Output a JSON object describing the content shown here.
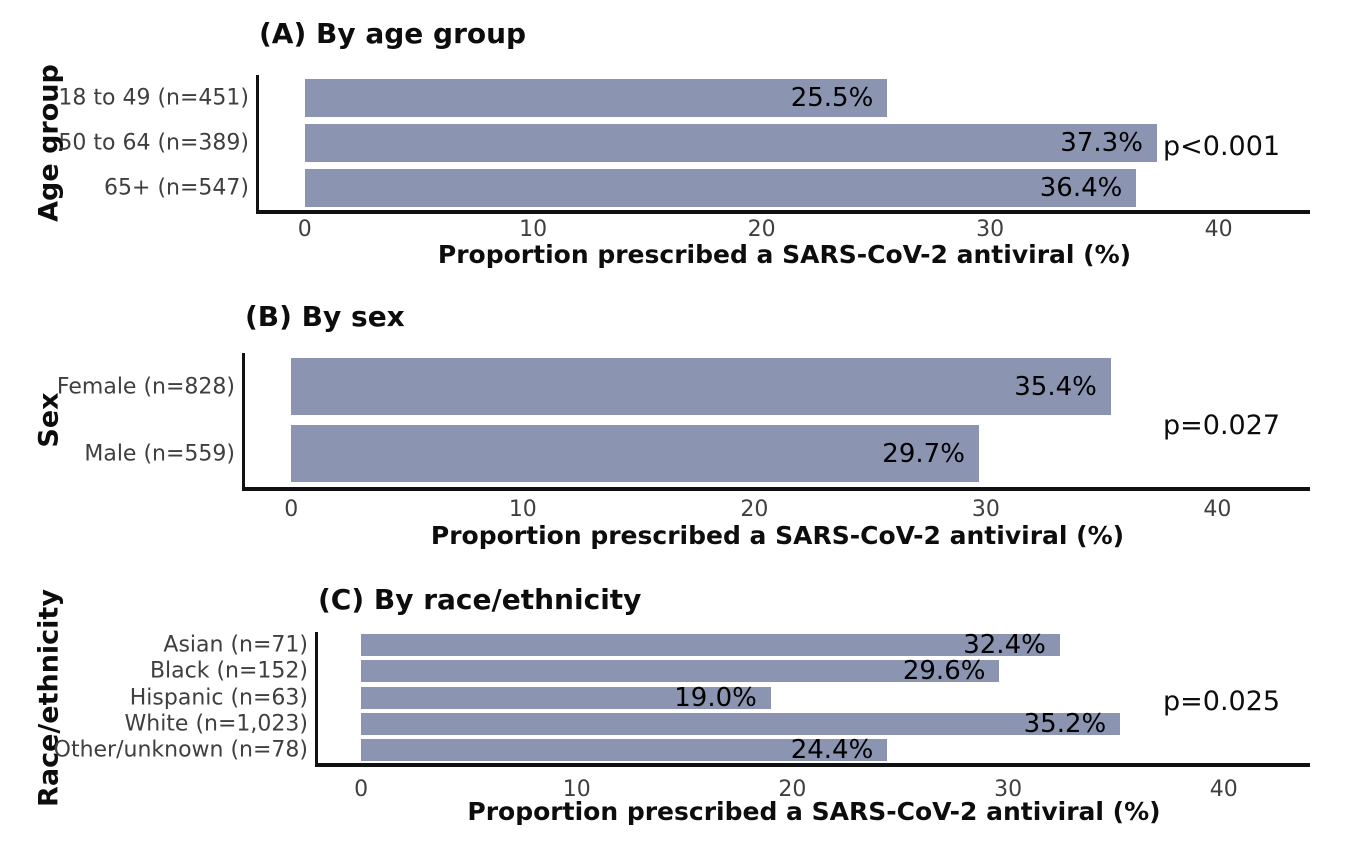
{
  "figure": {
    "bar_color": "#8B95B1",
    "axis_color": "#111111",
    "title_color": "#0d0d0d",
    "muted_text_color": "#3f3f3f"
  },
  "chart_data": [
    {
      "type": "bar",
      "orientation": "horizontal",
      "title": "(A) By age group",
      "ylabel": "Age group",
      "xlabel": "Proportion prescribed a SARS-CoV-2 antiviral (%)",
      "categories": [
        "18 to 49 (n=451)",
        "50 to 64 (n=389)",
        "65+ (n=547)"
      ],
      "values": [
        25.5,
        37.3,
        36.4
      ],
      "value_labels": [
        "25.5%",
        "37.3%",
        "36.4%"
      ],
      "annotation": "p<0.001",
      "xticks": [
        0,
        10,
        20,
        30,
        40
      ],
      "xlim": [
        0,
        40
      ],
      "grid": false,
      "legend": "none"
    },
    {
      "type": "bar",
      "orientation": "horizontal",
      "title": "(B) By sex",
      "ylabel": "Sex",
      "xlabel": "Proportion prescribed a SARS-CoV-2 antiviral (%)",
      "categories": [
        "Female (n=828)",
        "Male (n=559)"
      ],
      "values": [
        35.4,
        29.7
      ],
      "value_labels": [
        "35.4%",
        "29.7%"
      ],
      "annotation": "p=0.027",
      "xticks": [
        0,
        10,
        20,
        30,
        40
      ],
      "xlim": [
        0,
        40
      ],
      "grid": false,
      "legend": "none"
    },
    {
      "type": "bar",
      "orientation": "horizontal",
      "title": "(C) By race/ethnicity",
      "ylabel": "Race/ethnicity",
      "xlabel": "Proportion prescribed a SARS-CoV-2 antiviral (%)",
      "categories": [
        "Asian (n=71)",
        "Black (n=152)",
        "Hispanic (n=63)",
        "White (n=1,023)",
        "Other/unknown (n=78)"
      ],
      "values": [
        32.4,
        29.6,
        19.0,
        35.2,
        24.4
      ],
      "value_labels": [
        "32.4%",
        "29.6%",
        "19.0%",
        "35.2%",
        "24.4%"
      ],
      "annotation": "p=0.025",
      "xticks": [
        0,
        10,
        20,
        30,
        40
      ],
      "xlim": [
        0,
        40
      ],
      "grid": false,
      "legend": "none"
    }
  ]
}
